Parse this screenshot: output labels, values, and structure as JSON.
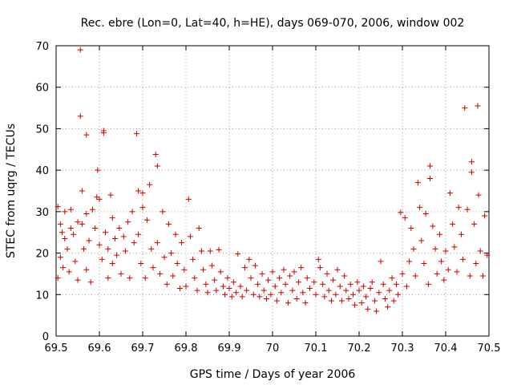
{
  "chart_data": {
    "type": "scatter",
    "title": "Rec. ebre (Lon=0, Lat=40, h=HE), days 069-070, 2006, window 002",
    "xlabel": "GPS time / Days of year 2006",
    "ylabel": "STEC from uqrg / TECUs",
    "xlim": [
      69.5,
      70.5
    ],
    "ylim": [
      0,
      70
    ],
    "xticks": [
      69.5,
      69.6,
      69.7,
      69.8,
      69.9,
      70.0,
      70.1,
      70.2,
      70.3,
      70.4,
      70.5
    ],
    "xtick_labels": [
      "69.5",
      "69.6",
      "69.7",
      "69.8",
      "69.9",
      "70",
      "70.1",
      "70.2",
      "70.3",
      "70.4",
      "70.5"
    ],
    "yticks": [
      0,
      10,
      20,
      30,
      40,
      50,
      60,
      70
    ],
    "ytick_labels": [
      "0",
      "10",
      "20",
      "30",
      "40",
      "50",
      "60",
      "70"
    ],
    "grid": true,
    "marker": "+",
    "series": [
      {
        "name": "STEC",
        "color": "#cc0000",
        "points": [
          [
            69.504,
            31.2
          ],
          [
            69.504,
            14.0
          ],
          [
            69.51,
            27.0
          ],
          [
            69.51,
            19.0
          ],
          [
            69.514,
            25.0
          ],
          [
            69.516,
            16.5
          ],
          [
            69.52,
            30.0
          ],
          [
            69.52,
            23.5
          ],
          [
            69.526,
            21.0
          ],
          [
            69.53,
            15.5
          ],
          [
            69.534,
            30.5
          ],
          [
            69.534,
            26.0
          ],
          [
            69.54,
            24.5
          ],
          [
            69.544,
            18.0
          ],
          [
            69.55,
            27.5
          ],
          [
            69.55,
            13.5
          ],
          [
            69.556,
            69.0
          ],
          [
            69.556,
            53.0
          ],
          [
            69.56,
            35.0
          ],
          [
            69.56,
            27.0
          ],
          [
            69.564,
            21.0
          ],
          [
            69.57,
            48.5
          ],
          [
            69.57,
            29.5
          ],
          [
            69.57,
            16.0
          ],
          [
            69.576,
            23.0
          ],
          [
            69.58,
            13.0
          ],
          [
            69.584,
            30.5
          ],
          [
            69.59,
            26.0
          ],
          [
            69.594,
            33.5
          ],
          [
            69.596,
            40.0
          ],
          [
            69.6,
            33.0
          ],
          [
            69.6,
            22.0
          ],
          [
            69.606,
            18.5
          ],
          [
            69.61,
            49.5
          ],
          [
            69.61,
            49.0
          ],
          [
            69.614,
            25.0
          ],
          [
            69.62,
            21.0
          ],
          [
            69.62,
            14.0
          ],
          [
            69.626,
            34.0
          ],
          [
            69.63,
            28.5
          ],
          [
            69.63,
            17.5
          ],
          [
            69.636,
            23.5
          ],
          [
            69.64,
            19.5
          ],
          [
            69.646,
            26.0
          ],
          [
            69.65,
            15.0
          ],
          [
            69.656,
            24.0
          ],
          [
            69.66,
            20.5
          ],
          [
            69.666,
            27.5
          ],
          [
            69.67,
            14.0
          ],
          [
            69.676,
            30.0
          ],
          [
            69.68,
            22.5
          ],
          [
            69.686,
            48.8
          ],
          [
            69.69,
            35.0
          ],
          [
            69.69,
            24.5
          ],
          [
            69.696,
            17.5
          ],
          [
            69.7,
            31.0
          ],
          [
            69.7,
            34.5
          ],
          [
            69.706,
            14.0
          ],
          [
            69.71,
            28.0
          ],
          [
            69.716,
            36.5
          ],
          [
            69.72,
            21.0
          ],
          [
            69.724,
            16.5
          ],
          [
            69.73,
            43.8
          ],
          [
            69.734,
            41.0
          ],
          [
            69.734,
            22.5
          ],
          [
            69.74,
            15.0
          ],
          [
            69.746,
            30.0
          ],
          [
            69.75,
            19.0
          ],
          [
            69.756,
            12.5
          ],
          [
            69.76,
            27.0
          ],
          [
            69.766,
            20.0
          ],
          [
            69.77,
            14.5
          ],
          [
            69.776,
            24.5
          ],
          [
            69.78,
            17.5
          ],
          [
            69.786,
            11.5
          ],
          [
            69.79,
            22.5
          ],
          [
            69.796,
            16.0
          ],
          [
            69.8,
            12.0
          ],
          [
            69.806,
            33.0
          ],
          [
            69.81,
            24.0
          ],
          [
            69.816,
            18.5
          ],
          [
            69.82,
            14.0
          ],
          [
            69.826,
            11.0
          ],
          [
            69.83,
            26.0
          ],
          [
            69.836,
            20.5
          ],
          [
            69.84,
            16.0
          ],
          [
            69.846,
            12.5
          ],
          [
            69.85,
            10.5
          ],
          [
            69.856,
            20.5
          ],
          [
            69.86,
            17.0
          ],
          [
            69.866,
            13.5
          ],
          [
            69.87,
            11.0
          ],
          [
            69.876,
            20.8
          ],
          [
            69.88,
            15.5
          ],
          [
            69.886,
            12.0
          ],
          [
            69.89,
            10.0
          ],
          [
            69.896,
            14.0
          ],
          [
            69.9,
            11.5
          ],
          [
            69.906,
            9.5
          ],
          [
            69.91,
            13.0
          ],
          [
            69.916,
            10.5
          ],
          [
            69.92,
            19.8
          ],
          [
            69.926,
            12.0
          ],
          [
            69.93,
            9.5
          ],
          [
            69.936,
            16.5
          ],
          [
            69.94,
            11.0
          ],
          [
            69.946,
            18.5
          ],
          [
            69.95,
            14.0
          ],
          [
            69.956,
            10.0
          ],
          [
            69.96,
            17.0
          ],
          [
            69.966,
            12.5
          ],
          [
            69.97,
            9.5
          ],
          [
            69.976,
            15.0
          ],
          [
            69.98,
            11.0
          ],
          [
            69.986,
            9.0
          ],
          [
            69.99,
            13.5
          ],
          [
            69.996,
            10.0
          ],
          [
            70.0,
            15.5
          ],
          [
            70.006,
            12.0
          ],
          [
            70.01,
            8.5
          ],
          [
            70.016,
            14.0
          ],
          [
            70.02,
            10.5
          ],
          [
            70.026,
            16.0
          ],
          [
            70.03,
            12.5
          ],
          [
            70.036,
            8.0
          ],
          [
            70.04,
            14.5
          ],
          [
            70.046,
            11.0
          ],
          [
            70.05,
            15.5
          ],
          [
            70.056,
            9.0
          ],
          [
            70.06,
            13.0
          ],
          [
            70.066,
            16.5
          ],
          [
            70.07,
            10.5
          ],
          [
            70.076,
            8.0
          ],
          [
            70.08,
            14.0
          ],
          [
            70.086,
            11.5
          ],
          [
            70.096,
            13.0
          ],
          [
            70.1,
            10.0
          ],
          [
            70.106,
            18.5
          ],
          [
            70.11,
            16.5
          ],
          [
            70.116,
            12.5
          ],
          [
            70.12,
            9.5
          ],
          [
            70.126,
            15.0
          ],
          [
            70.13,
            11.0
          ],
          [
            70.136,
            8.5
          ],
          [
            70.14,
            13.5
          ],
          [
            70.146,
            10.0
          ],
          [
            70.15,
            16.0
          ],
          [
            70.156,
            12.0
          ],
          [
            70.16,
            8.5
          ],
          [
            70.166,
            14.5
          ],
          [
            70.17,
            11.0
          ],
          [
            70.176,
            9.0
          ],
          [
            70.18,
            12.5
          ],
          [
            70.186,
            10.0
          ],
          [
            70.19,
            7.5
          ],
          [
            70.196,
            13.0
          ],
          [
            70.2,
            11.0
          ],
          [
            70.206,
            8.0
          ],
          [
            70.21,
            12.0
          ],
          [
            70.216,
            9.5
          ],
          [
            70.22,
            6.5
          ],
          [
            70.226,
            11.5
          ],
          [
            70.23,
            13.0
          ],
          [
            70.236,
            8.5
          ],
          [
            70.24,
            6.0
          ],
          [
            70.246,
            10.5
          ],
          [
            70.25,
            18.0
          ],
          [
            70.256,
            12.5
          ],
          [
            70.26,
            9.0
          ],
          [
            70.266,
            7.0
          ],
          [
            70.27,
            11.0
          ],
          [
            70.276,
            14.0
          ],
          [
            70.28,
            8.5
          ],
          [
            70.286,
            12.5
          ],
          [
            70.29,
            10.0
          ],
          [
            70.296,
            29.8
          ],
          [
            70.3,
            15.0
          ],
          [
            70.306,
            28.5
          ],
          [
            70.31,
            12.0
          ],
          [
            70.316,
            18.0
          ],
          [
            70.32,
            26.0
          ],
          [
            70.326,
            21.0
          ],
          [
            70.33,
            14.5
          ],
          [
            70.336,
            37.0
          ],
          [
            70.34,
            31.0
          ],
          [
            70.344,
            23.0
          ],
          [
            70.35,
            17.5
          ],
          [
            70.354,
            29.5
          ],
          [
            70.36,
            12.5
          ],
          [
            70.364,
            41.0
          ],
          [
            70.364,
            38.0
          ],
          [
            70.37,
            26.5
          ],
          [
            70.376,
            21.0
          ],
          [
            70.38,
            15.0
          ],
          [
            70.386,
            24.5
          ],
          [
            70.39,
            18.0
          ],
          [
            70.396,
            13.5
          ],
          [
            70.4,
            20.5
          ],
          [
            70.406,
            16.0
          ],
          [
            70.41,
            34.5
          ],
          [
            70.416,
            27.0
          ],
          [
            70.42,
            21.5
          ],
          [
            70.426,
            15.5
          ],
          [
            70.43,
            31.0
          ],
          [
            70.436,
            24.5
          ],
          [
            70.44,
            18.5
          ],
          [
            70.444,
            55.0
          ],
          [
            70.45,
            30.5
          ],
          [
            70.456,
            14.5
          ],
          [
            70.46,
            42.0
          ],
          [
            70.46,
            39.5
          ],
          [
            70.466,
            27.0
          ],
          [
            70.47,
            17.5
          ],
          [
            70.474,
            55.5
          ],
          [
            70.476,
            34.0
          ],
          [
            70.48,
            20.5
          ],
          [
            70.486,
            14.5
          ],
          [
            70.49,
            29.0
          ],
          [
            70.496,
            19.5
          ]
        ]
      }
    ]
  }
}
